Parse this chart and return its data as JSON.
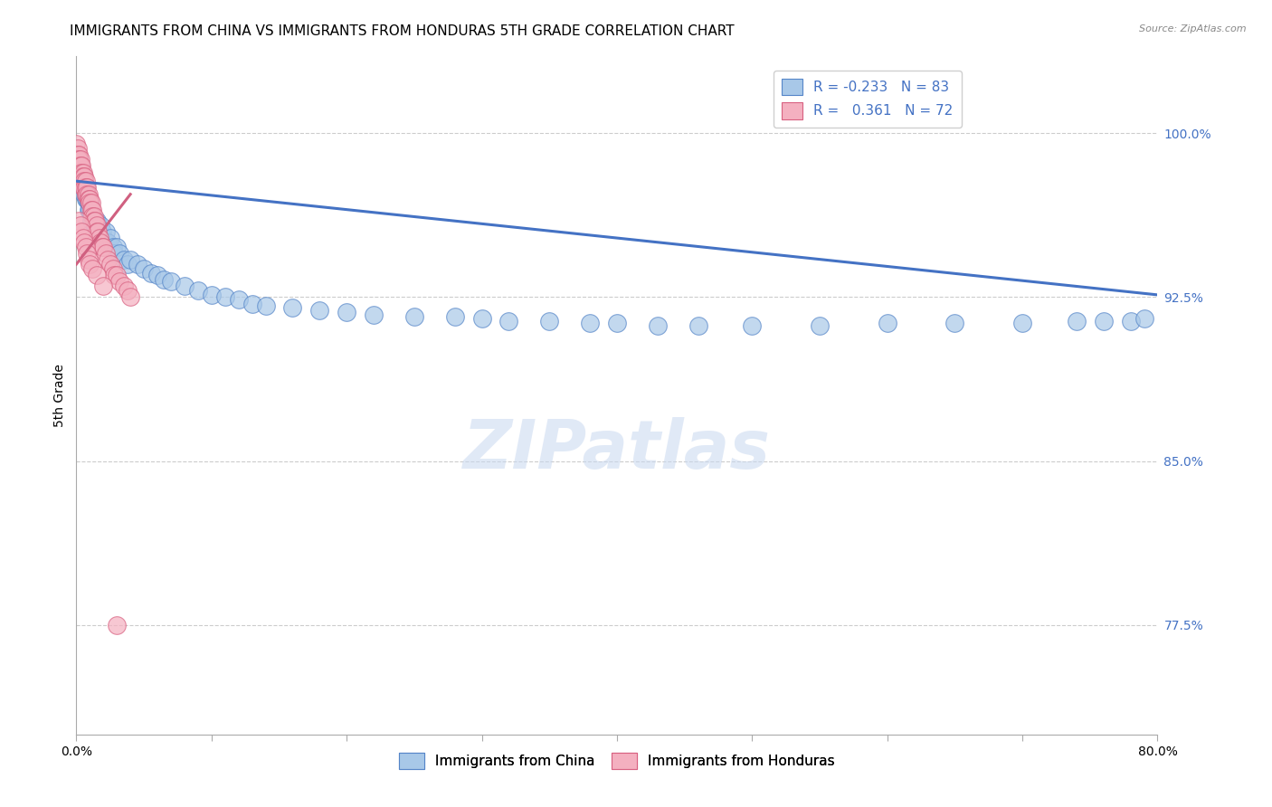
{
  "title": "IMMIGRANTS FROM CHINA VS IMMIGRANTS FROM HONDURAS 5TH GRADE CORRELATION CHART",
  "source": "Source: ZipAtlas.com",
  "ylabel": "5th Grade",
  "ytick_labels": [
    "100.0%",
    "92.5%",
    "85.0%",
    "77.5%"
  ],
  "ytick_values": [
    1.0,
    0.925,
    0.85,
    0.775
  ],
  "xlim": [
    0.0,
    0.8
  ],
  "ylim": [
    0.725,
    1.035
  ],
  "legend_china_R": "-0.233",
  "legend_china_N": "83",
  "legend_honduras_R": "0.361",
  "legend_honduras_N": "72",
  "china_color": "#A8C8E8",
  "honduras_color": "#F4B0C0",
  "china_edge_color": "#5585C8",
  "honduras_edge_color": "#D86080",
  "china_line_color": "#4472C4",
  "honduras_line_color": "#D06080",
  "china_scatter_x": [
    0.0,
    0.001,
    0.001,
    0.002,
    0.002,
    0.002,
    0.003,
    0.003,
    0.003,
    0.004,
    0.004,
    0.004,
    0.005,
    0.005,
    0.005,
    0.006,
    0.006,
    0.006,
    0.007,
    0.007,
    0.007,
    0.008,
    0.008,
    0.009,
    0.009,
    0.01,
    0.01,
    0.011,
    0.011,
    0.012,
    0.013,
    0.014,
    0.015,
    0.016,
    0.017,
    0.018,
    0.019,
    0.02,
    0.022,
    0.023,
    0.025,
    0.027,
    0.028,
    0.03,
    0.032,
    0.035,
    0.038,
    0.04,
    0.045,
    0.05,
    0.055,
    0.06,
    0.065,
    0.07,
    0.08,
    0.09,
    0.1,
    0.11,
    0.12,
    0.13,
    0.14,
    0.16,
    0.18,
    0.2,
    0.22,
    0.25,
    0.28,
    0.3,
    0.32,
    0.35,
    0.38,
    0.4,
    0.43,
    0.46,
    0.5,
    0.55,
    0.6,
    0.65,
    0.7,
    0.74,
    0.76,
    0.78,
    0.79
  ],
  "china_scatter_y": [
    0.99,
    0.988,
    0.985,
    0.988,
    0.985,
    0.982,
    0.985,
    0.982,
    0.98,
    0.982,
    0.98,
    0.978,
    0.98,
    0.978,
    0.975,
    0.978,
    0.975,
    0.972,
    0.975,
    0.972,
    0.97,
    0.972,
    0.97,
    0.968,
    0.965,
    0.968,
    0.965,
    0.963,
    0.96,
    0.962,
    0.96,
    0.958,
    0.96,
    0.958,
    0.955,
    0.958,
    0.955,
    0.952,
    0.955,
    0.95,
    0.952,
    0.948,
    0.945,
    0.948,
    0.945,
    0.942,
    0.94,
    0.942,
    0.94,
    0.938,
    0.936,
    0.935,
    0.933,
    0.932,
    0.93,
    0.928,
    0.926,
    0.925,
    0.924,
    0.922,
    0.921,
    0.92,
    0.919,
    0.918,
    0.917,
    0.916,
    0.916,
    0.915,
    0.914,
    0.914,
    0.913,
    0.913,
    0.912,
    0.912,
    0.912,
    0.912,
    0.913,
    0.913,
    0.913,
    0.914,
    0.914,
    0.914,
    0.915
  ],
  "honduras_scatter_x": [
    0.0,
    0.0,
    0.001,
    0.001,
    0.001,
    0.001,
    0.002,
    0.002,
    0.002,
    0.002,
    0.003,
    0.003,
    0.003,
    0.003,
    0.003,
    0.004,
    0.004,
    0.004,
    0.004,
    0.005,
    0.005,
    0.005,
    0.005,
    0.006,
    0.006,
    0.006,
    0.007,
    0.007,
    0.007,
    0.008,
    0.008,
    0.009,
    0.009,
    0.01,
    0.01,
    0.011,
    0.011,
    0.012,
    0.012,
    0.013,
    0.013,
    0.014,
    0.015,
    0.015,
    0.016,
    0.017,
    0.018,
    0.019,
    0.02,
    0.022,
    0.023,
    0.025,
    0.027,
    0.028,
    0.03,
    0.032,
    0.035,
    0.038,
    0.04,
    0.002,
    0.003,
    0.004,
    0.005,
    0.006,
    0.007,
    0.008,
    0.009,
    0.01,
    0.012,
    0.015,
    0.02,
    0.03
  ],
  "honduras_scatter_y": [
    0.995,
    0.99,
    0.993,
    0.99,
    0.988,
    0.985,
    0.99,
    0.988,
    0.985,
    0.982,
    0.988,
    0.985,
    0.982,
    0.98,
    0.978,
    0.985,
    0.982,
    0.98,
    0.978,
    0.982,
    0.98,
    0.978,
    0.975,
    0.98,
    0.978,
    0.975,
    0.978,
    0.975,
    0.972,
    0.975,
    0.972,
    0.972,
    0.97,
    0.97,
    0.968,
    0.968,
    0.965,
    0.965,
    0.962,
    0.962,
    0.96,
    0.96,
    0.958,
    0.955,
    0.955,
    0.952,
    0.95,
    0.948,
    0.948,
    0.945,
    0.942,
    0.94,
    0.938,
    0.935,
    0.935,
    0.932,
    0.93,
    0.928,
    0.925,
    0.96,
    0.958,
    0.955,
    0.952,
    0.95,
    0.948,
    0.945,
    0.942,
    0.94,
    0.938,
    0.935,
    0.93,
    0.775
  ],
  "china_trendline_x": [
    0.0,
    0.8
  ],
  "china_trendline_y": [
    0.978,
    0.926
  ],
  "honduras_trendline_x": [
    0.0,
    0.04
  ],
  "honduras_trendline_y": [
    0.94,
    0.972
  ],
  "watermark_text": "ZIPatlas",
  "background_color": "#ffffff",
  "grid_color": "#cccccc",
  "title_fontsize": 11,
  "axis_label_fontsize": 9,
  "tick_fontsize": 9,
  "legend_fontsize": 11
}
